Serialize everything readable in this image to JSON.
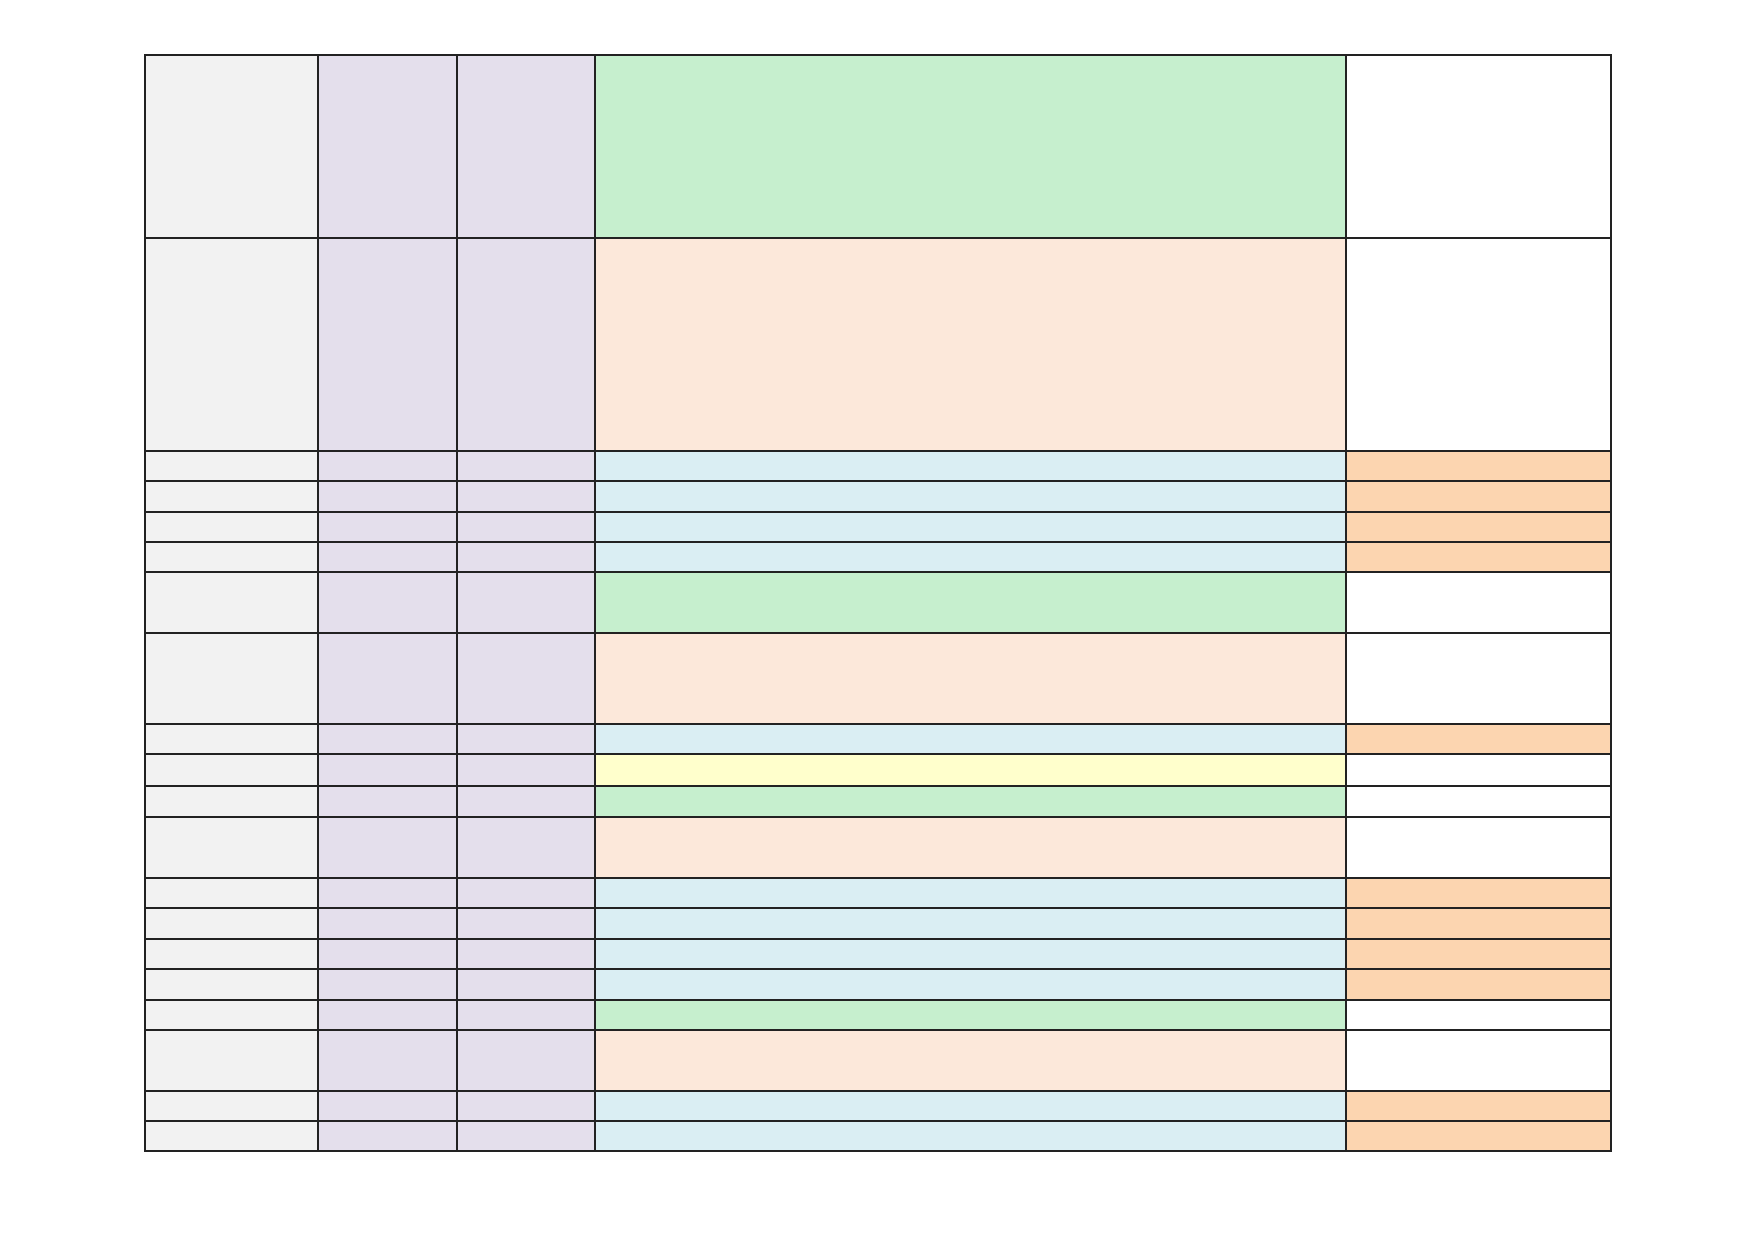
{
  "table": {
    "column_colors": [
      "#f2f2f2",
      "#e4dfec",
      "#e4dfec"
    ],
    "row_colors": [
      [
        "#c6efce",
        "#ffffff"
      ],
      [
        "#fce8da",
        "#ffffff"
      ],
      [
        "#daeef3",
        "#fcd5b0"
      ],
      [
        "#daeef3",
        "#fcd5b0"
      ],
      [
        "#daeef3",
        "#fcd5b0"
      ],
      [
        "#daeef3",
        "#fcd5b0"
      ],
      [
        "#c6efce",
        "#ffffff"
      ],
      [
        "#fce8da",
        "#ffffff"
      ],
      [
        "#daeef3",
        "#fcd5b0"
      ],
      [
        "#ffffcc",
        "#ffffff"
      ],
      [
        "#c6efce",
        "#ffffff"
      ],
      [
        "#fce8da",
        "#ffffff"
      ],
      [
        "#daeef3",
        "#fcd5b0"
      ],
      [
        "#daeef3",
        "#fcd5b0"
      ],
      [
        "#daeef3",
        "#fcd5b0"
      ],
      [
        "#daeef3",
        "#fcd5b0"
      ],
      [
        "#c6efce",
        "#ffffff"
      ],
      [
        "#fce8da",
        "#ffffff"
      ],
      [
        "#daeef3",
        "#fcd5b0"
      ],
      [
        "#daeef3",
        "#fcd5b0"
      ]
    ]
  }
}
